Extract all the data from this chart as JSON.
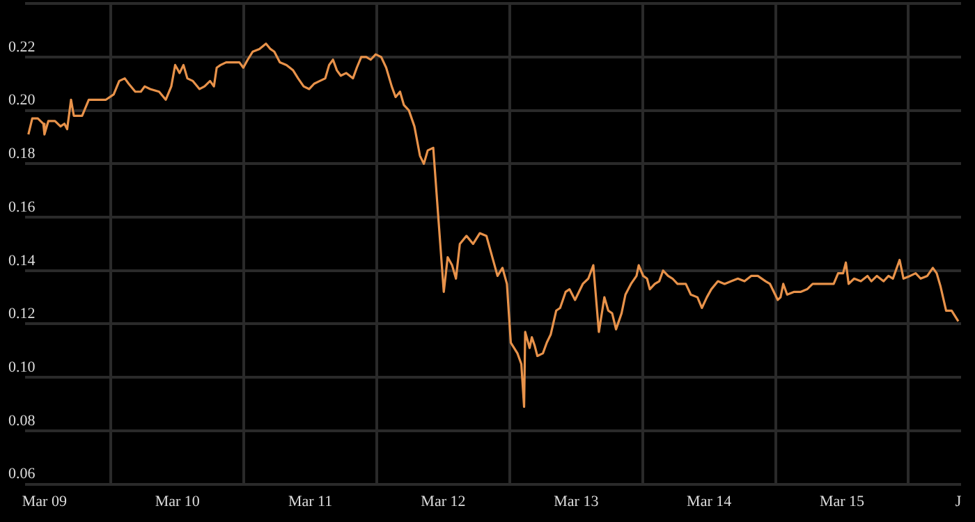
{
  "chart_data": {
    "type": "line",
    "marker": "none",
    "grid": true,
    "xlim": [
      "--03-08T20:30",
      "--03-15T21:30"
    ],
    "xticks": [
      {
        "value": "--03-09T00:00",
        "label": "Mar 09"
      },
      {
        "value": "--03-09T12:00",
        "label": null
      },
      {
        "value": "--03-10T00:00",
        "label": "Mar 10"
      },
      {
        "value": "--03-10T12:00",
        "label": null
      },
      {
        "value": "--03-11T00:00",
        "label": "Mar 11"
      },
      {
        "value": "--03-11T12:00",
        "label": null
      },
      {
        "value": "--03-12T00:00",
        "label": "Mar 12"
      },
      {
        "value": "--03-12T12:00",
        "label": null
      },
      {
        "value": "--03-13T00:00",
        "label": "Mar 13"
      },
      {
        "value": "--03-13T12:00",
        "label": null
      },
      {
        "value": "--03-14T00:00",
        "label": "Mar 14"
      },
      {
        "value": "--03-14T12:00",
        "label": null
      },
      {
        "value": "--03-15T00:00",
        "label": "Mar 15"
      },
      {
        "value": "--03-15T12:00",
        "label": null
      },
      {
        "value": "--03-15T21:00",
        "label": "J"
      }
    ],
    "ylim": [
      0.06,
      0.24
    ],
    "yticks": [
      {
        "value": 0.06,
        "label": "0.06"
      },
      {
        "value": 0.08,
        "label": "0.08"
      },
      {
        "value": 0.1,
        "label": "0.10"
      },
      {
        "value": 0.12,
        "label": "0.12"
      },
      {
        "value": 0.14,
        "label": "0.14"
      },
      {
        "value": 0.16,
        "label": "0.16"
      },
      {
        "value": 0.18,
        "label": "0.18"
      },
      {
        "value": 0.2,
        "label": "0.20"
      },
      {
        "value": 0.22,
        "label": "0.22"
      },
      {
        "value": 0.24,
        "label": null
      }
    ],
    "x": [
      "--03-08T21:06",
      "--03-08T21:48",
      "--03-08T22:48",
      "--03-08T23:48",
      "--03-09T00:00",
      "--03-09T00:42",
      "--03-09T01:54",
      "--03-09T02:54",
      "--03-09T03:36",
      "--03-09T04:06",
      "--03-09T04:48",
      "--03-09T05:18",
      "--03-09T06:48",
      "--03-09T08:00",
      "--03-09T09:54",
      "--03-09T11:06",
      "--03-09T12:30",
      "--03-09T13:30",
      "--03-09T14:30",
      "--03-09T15:12",
      "--03-09T16:24",
      "--03-09T17:24",
      "--03-09T18:06",
      "--03-09T19:06",
      "--03-09T20:42",
      "--03-09T21:54",
      "--03-09T22:54",
      "--03-09T23:36",
      "--03-10T00:24",
      "--03-10T01:06",
      "--03-10T01:48",
      "--03-10T02:48",
      "--03-10T04:00",
      "--03-10T04:54",
      "--03-10T05:54",
      "--03-10T06:36",
      "--03-10T07:06",
      "--03-10T07:48",
      "--03-10T08:48",
      "--03-10T10:00",
      "--03-10T11:12",
      "--03-10T11:54",
      "--03-10T12:42",
      "--03-10T13:36",
      "--03-10T14:48",
      "--03-10T16:00",
      "--03-10T16:48",
      "--03-10T17:30",
      "--03-10T18:30",
      "--03-10T19:42",
      "--03-10T20:54",
      "--03-10T21:48",
      "--03-10T22:48",
      "--03-10T23:48",
      "--03-11T00:42",
      "--03-11T01:42",
      "--03-11T02:42",
      "--03-11T03:24",
      "--03-11T04:06",
      "--03-11T04:48",
      "--03-11T05:30",
      "--03-11T06:30",
      "--03-11T07:42",
      "--03-11T08:24",
      "--03-11T09:12",
      "--03-11T10:06",
      "--03-11T10:54",
      "--03-11T11:48",
      "--03-11T12:48",
      "--03-11T13:42",
      "--03-11T14:42",
      "--03-11T15:24",
      "--03-11T16:12",
      "--03-11T16:54",
      "--03-11T17:48",
      "--03-11T18:48",
      "--03-11T19:48",
      "--03-11T20:30",
      "--03-11T21:12",
      "--03-11T22:12",
      "--03-11T22:54",
      "--03-12T00:06",
      "--03-12T00:48",
      "--03-12T01:36",
      "--03-12T02:18",
      "--03-12T03:00",
      "--03-12T04:12",
      "--03-12T05:24",
      "--03-12T06:36",
      "--03-12T07:48",
      "--03-12T09:00",
      "--03-12T09:48",
      "--03-12T10:42",
      "--03-12T11:30",
      "--03-12T12:12",
      "--03-12T13:24",
      "--03-12T14:06",
      "--03-12T14:36",
      "--03-12T14:48",
      "--03-12T15:36",
      "--03-12T16:00",
      "--03-12T16:30",
      "--03-12T17:00",
      "--03-12T18:00",
      "--03-12T18:42",
      "--03-12T19:24",
      "--03-12T20:24",
      "--03-12T21:06",
      "--03-12T22:06",
      "--03-12T22:48",
      "--03-12T23:48",
      "--03-13T00:30",
      "--03-13T01:12",
      "--03-13T02:12",
      "--03-13T03:06",
      "--03-13T04:06",
      "--03-13T05:06",
      "--03-13T05:48",
      "--03-13T06:30",
      "--03-13T07:12",
      "--03-13T08:12",
      "--03-13T08:54",
      "--03-13T09:54",
      "--03-13T10:54",
      "--03-13T11:18",
      "--03-13T12:06",
      "--03-13T12:48",
      "--03-13T13:18",
      "--03-13T14:12",
      "--03-13T15:00",
      "--03-13T15:42",
      "--03-13T16:36",
      "--03-13T17:24",
      "--03-13T18:18",
      "--03-13T19:48",
      "--03-13T20:42",
      "--03-13T21:54",
      "--03-13T22:42",
      "--03-13T23:36",
      "--03-14T00:24",
      "--03-14T01:36",
      "--03-14T02:48",
      "--03-14T04:00",
      "--03-14T05:12",
      "--03-14T06:24",
      "--03-14T07:36",
      "--03-14T08:48",
      "--03-14T10:12",
      "--03-14T11:00",
      "--03-14T11:42",
      "--03-14T12:24",
      "--03-14T12:54",
      "--03-14T13:24",
      "--03-14T14:06",
      "--03-14T15:18",
      "--03-14T16:30",
      "--03-14T17:42",
      "--03-14T18:42",
      "--03-14T20:06",
      "--03-14T21:18",
      "--03-14T22:30",
      "--03-14T23:18",
      "--03-15T00:12",
      "--03-15T00:42",
      "--03-15T01:12",
      "--03-15T02:12",
      "--03-15T03:24",
      "--03-15T04:36",
      "--03-15T05:18",
      "--03-15T06:18",
      "--03-15T07:30",
      "--03-15T08:24",
      "--03-15T09:12",
      "--03-15T10:24",
      "--03-15T11:06",
      "--03-15T12:18",
      "--03-15T13:18",
      "--03-15T14:12",
      "--03-15T15:24",
      "--03-15T16:24",
      "--03-15T17:06",
      "--03-15T17:48",
      "--03-15T18:48",
      "--03-15T19:48",
      "--03-15T21:00"
    ],
    "series": [
      {
        "color": "#e8924a",
        "values": [
          0.191,
          0.197,
          0.197,
          0.195,
          0.191,
          0.196,
          0.196,
          0.194,
          0.195,
          0.193,
          0.204,
          0.198,
          0.198,
          0.204,
          0.204,
          0.204,
          0.206,
          0.211,
          0.212,
          0.21,
          0.207,
          0.207,
          0.209,
          0.208,
          0.207,
          0.204,
          0.209,
          0.217,
          0.214,
          0.217,
          0.212,
          0.211,
          0.208,
          0.209,
          0.211,
          0.209,
          0.216,
          0.217,
          0.218,
          0.218,
          0.218,
          0.216,
          0.219,
          0.222,
          0.223,
          0.225,
          0.223,
          0.222,
          0.218,
          0.217,
          0.215,
          0.212,
          0.209,
          0.208,
          0.21,
          0.211,
          0.212,
          0.217,
          0.219,
          0.215,
          0.213,
          0.214,
          0.212,
          0.216,
          0.22,
          0.22,
          0.219,
          0.221,
          0.22,
          0.216,
          0.209,
          0.205,
          0.207,
          0.202,
          0.2,
          0.194,
          0.183,
          0.18,
          0.185,
          0.186,
          0.166,
          0.132,
          0.145,
          0.142,
          0.137,
          0.15,
          0.153,
          0.15,
          0.154,
          0.153,
          0.144,
          0.138,
          0.141,
          0.135,
          0.113,
          0.109,
          0.105,
          0.089,
          0.117,
          0.111,
          0.115,
          0.112,
          0.108,
          0.109,
          0.113,
          0.116,
          0.125,
          0.126,
          0.132,
          0.133,
          0.129,
          0.132,
          0.135,
          0.137,
          0.142,
          0.117,
          0.13,
          0.125,
          0.124,
          0.118,
          0.124,
          0.131,
          0.135,
          0.138,
          0.142,
          0.138,
          0.137,
          0.133,
          0.135,
          0.136,
          0.14,
          0.138,
          0.137,
          0.135,
          0.135,
          0.131,
          0.13,
          0.126,
          0.13,
          0.133,
          0.136,
          0.135,
          0.136,
          0.137,
          0.136,
          0.138,
          0.138,
          0.136,
          0.135,
          0.132,
          0.129,
          0.13,
          0.135,
          0.131,
          0.132,
          0.132,
          0.133,
          0.135,
          0.135,
          0.135,
          0.135,
          0.139,
          0.139,
          0.143,
          0.135,
          0.137,
          0.136,
          0.138,
          0.136,
          0.138,
          0.136,
          0.138,
          0.137,
          0.144,
          0.137,
          0.138,
          0.139,
          0.137,
          0.138,
          0.141,
          0.139,
          0.134,
          0.125,
          0.125,
          0.121
        ]
      }
    ]
  }
}
